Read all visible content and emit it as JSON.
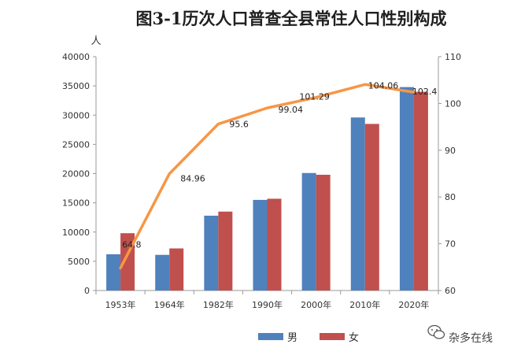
{
  "chart_data": {
    "type": "bar",
    "title": "图3-1历次人口普查全县常住人口性别构成",
    "left_axis_unit": "人",
    "categories": [
      "1953年",
      "1964年",
      "1982年",
      "1990年",
      "2000年",
      "2010年",
      "2020年"
    ],
    "series": [
      {
        "name": "男",
        "type": "bar",
        "axis": "left",
        "color": "#4f81bd",
        "values": [
          6200,
          6100,
          12800,
          15500,
          20100,
          29600,
          34800
        ]
      },
      {
        "name": "女",
        "type": "bar",
        "axis": "left",
        "color": "#c0504d",
        "values": [
          9800,
          7200,
          13500,
          15700,
          19800,
          28500,
          34000
        ]
      },
      {
        "type": "line",
        "axis": "right",
        "color": "#f79646",
        "values": [
          64.8,
          84.96,
          95.6,
          99.04,
          101.29,
          104.06,
          102.4
        ],
        "labels": [
          "64.8",
          "84.96",
          "95.6",
          "99.04",
          "101.29",
          "104.06",
          "102.4"
        ]
      }
    ],
    "y_left": {
      "min": 0,
      "max": 40000,
      "ticks": [
        "0",
        "5000",
        "10000",
        "15000",
        "20000",
        "25000",
        "30000",
        "35000",
        "40000"
      ]
    },
    "y_right": {
      "min": 60,
      "max": 110,
      "ticks": [
        "60",
        "70",
        "80",
        "90",
        "100",
        "110"
      ]
    },
    "legend_position": "bottom",
    "grid": false
  },
  "watermark": {
    "icon": "wechat-icon",
    "text": "杂多在线"
  }
}
